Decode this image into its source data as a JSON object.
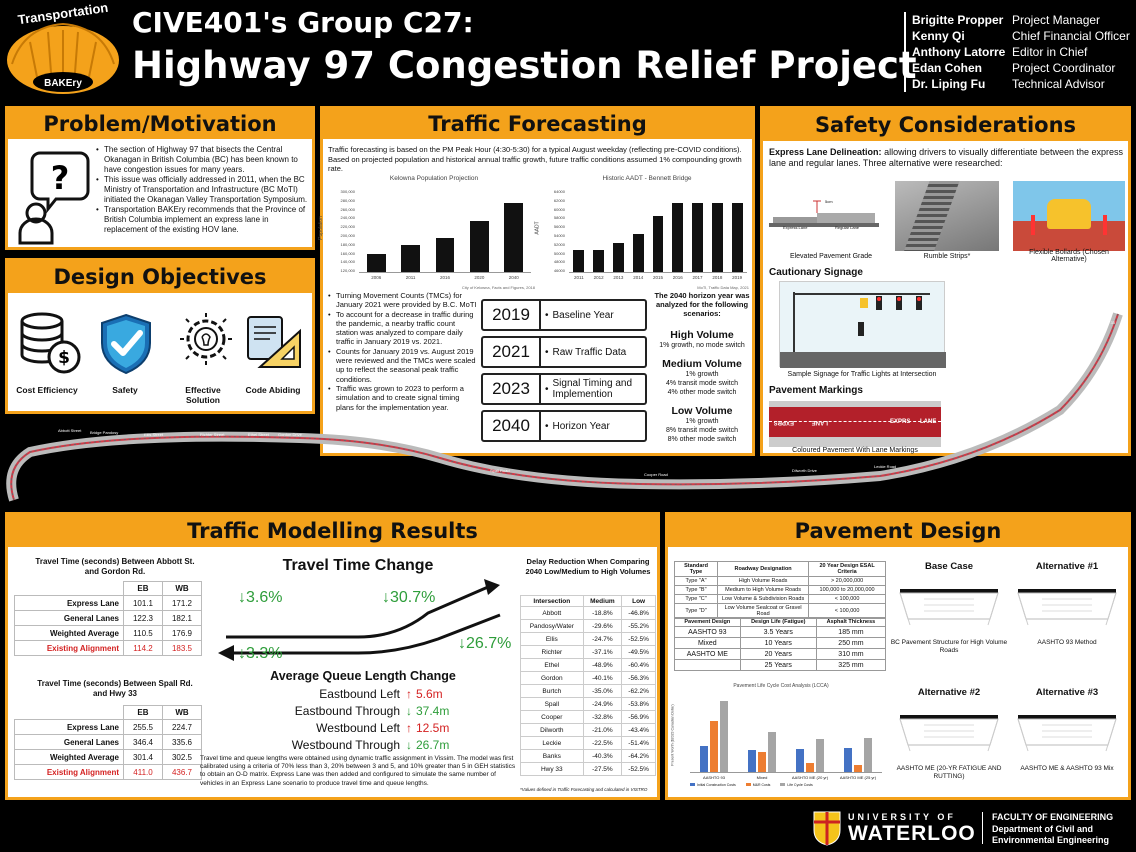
{
  "header": {
    "logo_top": "Transportation",
    "logo_bottom": "BAKEry",
    "title1": "CIVE401's Group C27:",
    "title2": "Highway 97 Congestion Relief Project",
    "team": [
      {
        "name": "Brigitte Propper",
        "role": "Project Manager"
      },
      {
        "name": "Kenny Qi",
        "role": "Chief Financial Officer"
      },
      {
        "name": "Anthony Latorre",
        "role": "Editor in Chief"
      },
      {
        "name": "Edan Cohen",
        "role": "Project Coordinator"
      },
      {
        "name": "Dr. Liping Fu",
        "role": "Technical Advisor"
      }
    ]
  },
  "problem": {
    "title": "Problem/Motivation",
    "bullets": [
      "The section of Highway 97 that bisects the Central Okanagan in British Columbia (BC) has been known to have congestion issues for many years.",
      "This issue was officially addressed in 2011, when the BC Ministry of Transportation and Infrastructure (BC MoTI) initiated the Okanagan Valley Transportation Symposium.",
      "Transportation BAKEry recommends that the Province of British Columbia implement an express lane in replacement of the existing HOV lane."
    ]
  },
  "objectives": {
    "title": "Design Objectives",
    "items": [
      "Cost Efficiency",
      "Safety",
      "Effective Solution",
      "Code Abiding"
    ]
  },
  "forecast": {
    "title": "Traffic Forecasting",
    "intro": "Traffic forecasting is based on the PM Peak Hour (4:30-5:30) for a typical August weekday (reflecting pre-COVID conditions). Based on projected population and historical annual traffic growth, future traffic conditions assumed 1% compounding growth rate.",
    "bullets": [
      "Turning Movement Counts (TMCs) for January 2021 were provided by B.C. MoTI",
      "To account for a decrease in traffic during the pandemic, a nearby traffic count station was analyzed to compare daily traffic in January 2019 vs. 2021.",
      "Counts for January 2019 vs. August 2019 were reviewed and the TMCs were scaled up to reflect the seasonal peak traffic conditions.",
      "Traffic was grown to 2023 to perform a simulation and to create signal timing plans for the implementation year."
    ],
    "years": [
      {
        "year": "2019",
        "label": "Baseline Year"
      },
      {
        "year": "2021",
        "label": "Raw Traffic Data"
      },
      {
        "year": "2023",
        "label": "Signal Timing and Implemention"
      },
      {
        "year": "2040",
        "label": "Horizon Year"
      }
    ],
    "scenario_intro": "The 2040 horizon year was analyzed for the following scenarios:",
    "scenarios": [
      {
        "name": "High Volume",
        "lines": [
          "1% growth, no mode switch"
        ]
      },
      {
        "name": "Medium Volume",
        "lines": [
          "1% growth",
          "4% transit mode switch",
          "4% other mode switch"
        ]
      },
      {
        "name": "Low Volume",
        "lines": [
          "1% growth",
          "8% transit mode switch",
          "8% other mode switch"
        ]
      }
    ]
  },
  "chart_data": [
    {
      "type": "bar",
      "title": "Kelowna Population Projection",
      "ylabel": "Population",
      "categories": [
        "2006",
        "2011",
        "2016",
        "2020",
        "2040"
      ],
      "values": [
        160000,
        180000,
        197000,
        235000,
        275000
      ],
      "ylim": [
        120000,
        300000
      ],
      "yticks": [
        "300,000",
        "280,000",
        "260,000",
        "240,000",
        "220,000",
        "200,000",
        "180,000",
        "160,000",
        "140,000",
        "120,000"
      ],
      "source": "City of Kelowna, Facts and Figures, 2018"
    },
    {
      "type": "bar",
      "title": "Historic AADT - Bennett Bridge",
      "ylabel": "AADT",
      "categories": [
        "2011",
        "2012",
        "2013",
        "2014",
        "2015",
        "2016",
        "2017",
        "2018",
        "2019"
      ],
      "values": [
        51000,
        51000,
        52500,
        54500,
        58500,
        61500,
        61500,
        61500,
        61500
      ],
      "ylim": [
        46000,
        64000
      ],
      "yticks": [
        "64000",
        "62000",
        "60000",
        "58000",
        "56000",
        "54000",
        "52000",
        "50000",
        "48000",
        "46000"
      ],
      "source": "MoTI, Traffic Data Map, 2021"
    }
  ],
  "safety": {
    "title": "Safety Considerations",
    "delineation_head": "Express Lane Delineation:",
    "delineation_text": "allowing drivers to visually differentiate between the express lane and regular lanes. Three alternative were researched:",
    "alt_captions": [
      "Elevated Pavement Grade",
      "Rumble Strips*",
      "Flexible Bollards (Chosen Alternative)"
    ],
    "diagram_labels": [
      "Express Lane",
      "Regular Lane",
      "5cm"
    ],
    "signage_head": "Cautionary Signage",
    "signage_caption": "Sample Signage for Traffic Lights at Intersection",
    "markings_head": "Pavement Markings",
    "markings_caption": "Coloured Pavement With Lane Markings",
    "marking_words": [
      "EXPRS",
      "LANE",
      "EXPRS",
      "LANE"
    ]
  },
  "map": {
    "labels": [
      "Abbott Street",
      "Bridge Pandosy",
      "Ellis Street",
      "Richter Street",
      "Ethel Street",
      "Gordon Drive",
      "Burtch Road",
      "Spall Road",
      "Cooper Road",
      "Dilworth Drive",
      "Leckie Road",
      "Banks Road",
      "Highway 33"
    ]
  },
  "modelling": {
    "title": "Traffic Modelling Results",
    "table1": {
      "title": "Travel Time (seconds) Between Abbott St. and Gordon Rd.",
      "cols": [
        "EB",
        "WB"
      ],
      "rows": [
        {
          "label": "Express Lane",
          "eb": "101.1",
          "wb": "171.2"
        },
        {
          "label": "General Lanes",
          "eb": "122.3",
          "wb": "182.1"
        },
        {
          "label": "Weighted Average",
          "eb": "110.5",
          "wb": "176.9"
        },
        {
          "label": "Existing Alignment",
          "eb": "114.2",
          "wb": "183.5"
        }
      ]
    },
    "table2": {
      "title": "Travel Time (seconds) Between Spall Rd. and Hwy 33",
      "cols": [
        "EB",
        "WB"
      ],
      "rows": [
        {
          "label": "Express Lane",
          "eb": "255.5",
          "wb": "224.7"
        },
        {
          "label": "General Lanes",
          "eb": "346.4",
          "wb": "335.6"
        },
        {
          "label": "Weighted Average",
          "eb": "301.4",
          "wb": "302.5"
        },
        {
          "label": "Existing Alignment",
          "eb": "411.0",
          "wb": "436.7"
        }
      ]
    },
    "ttc_title": "Travel Time Change",
    "ttc": [
      "3.6%",
      "30.7%",
      "26.7%",
      "3.3%"
    ],
    "queue_title": "Average Queue Length Change",
    "queue": [
      {
        "label": "Eastbound Left",
        "value": "5.6m",
        "dir": "up"
      },
      {
        "label": "Eastbound Through",
        "value": "37.4m",
        "dir": "down"
      },
      {
        "label": "Westbound Left",
        "value": "12.5m",
        "dir": "up"
      },
      {
        "label": "Westbound Through",
        "value": "26.7m",
        "dir": "down"
      }
    ],
    "note": "Travel time and queue lengths were obtained using dynamic traffic assignment in Vissim. The model was first calibrated using a criteria of 70% less than 3, 20% between 3 and 5, and 10% greater than 5 in GEH statistics to obtain an O-D matrix. Express Lane was then added and configured to simulate the same number of vehicles in an Express Lane scenario to produce travel time and queue lengths.",
    "delay": {
      "title": "Delay Reduction When Comparing 2040 Low/Medium to High Volumes",
      "cols": [
        "Intersection",
        "Medium",
        "Low"
      ],
      "rows": [
        [
          "Abbott",
          "-18.8%",
          "-46.8%"
        ],
        [
          "Pandosy/Water",
          "-29.6%",
          "-55.2%"
        ],
        [
          "Ellis",
          "-24.7%",
          "-52.5%"
        ],
        [
          "Richter",
          "-37.1%",
          "-49.5%"
        ],
        [
          "Ethel",
          "-48.9%",
          "-60.4%"
        ],
        [
          "Gordon",
          "-40.1%",
          "-56.3%"
        ],
        [
          "Burtch",
          "-35.0%",
          "-62.2%"
        ],
        [
          "Spall",
          "-24.9%",
          "-53.8%"
        ],
        [
          "Cooper",
          "-32.8%",
          "-56.9%"
        ],
        [
          "Dilworth",
          "-21.0%",
          "-43.4%"
        ],
        [
          "Leckie",
          "-22.5%",
          "-51.4%"
        ],
        [
          "Banks",
          "-40.3%",
          "-64.2%"
        ],
        [
          "Hwy 33",
          "-27.5%",
          "-52.5%"
        ]
      ],
      "footnote": "*Values defined in Traffic Forecasting and calculated in VISTRO"
    }
  },
  "pavement": {
    "title": "Pavement Design",
    "std": {
      "cols": [
        "Standard Type",
        "Roadway Designation",
        "20 Year Design ESAL Criteria"
      ],
      "rows": [
        [
          "Type \"A\"",
          "High Volume Roads",
          "> 20,000,000"
        ],
        [
          "Type \"B\"",
          "Medium to High Volume Roads",
          "100,000 to 20,000,000"
        ],
        [
          "Type \"C\"",
          "Low Volume & Subdivision Roads",
          "< 100,000"
        ],
        [
          "Type \"D\"",
          "Low Volume Sealcoat or Gravel Road",
          "< 100,000"
        ]
      ]
    },
    "design": {
      "cols": [
        "Pavement Design",
        "Design Life (Fatigue)",
        "Asphalt Thickness"
      ],
      "rows": [
        [
          "AASHTO 93",
          "3.5 Years",
          "185 mm"
        ],
        [
          "Mixed",
          "10 Years",
          "250 mm"
        ],
        [
          "AASHTO ME",
          "20 Years",
          "310 mm"
        ],
        [
          "",
          "25 Years",
          "325 mm"
        ]
      ]
    },
    "lcca_title": "Pavement Life Cycle Cost Analysis (LCCA)",
    "lcca_ylabel": "Present Worth ($2023 Canadian Dollar)",
    "lcca_categories": [
      "AASHTO 93",
      "Mixed",
      "AASHTO ME (20 yr)",
      "AASHTO ME (25 yr)"
    ],
    "lcca_series": [
      {
        "name": "Initial Construction Costs",
        "color": "#4472c4",
        "values": [
          0.45,
          0.38,
          0.4,
          0.42
        ]
      },
      {
        "name": "M&R Costs",
        "color": "#ed7d31",
        "values": [
          0.9,
          0.35,
          0.15,
          0.12
        ]
      },
      {
        "name": "Life Cycle Costs",
        "color": "#a5a5a5",
        "values": [
          1.25,
          0.7,
          0.58,
          0.6
        ]
      }
    ],
    "sections": [
      {
        "title": "Base Case",
        "caption": "BC Pavement Structure for High Volume Roads"
      },
      {
        "title": "Alternative #1",
        "caption": "AASHTO 93 Method"
      },
      {
        "title": "Alternative #2",
        "caption": "AASHTO ME (20-YR FATIGUE AND RUTTING)"
      },
      {
        "title": "Alternative #3",
        "caption": "AASHTO ME & AASHTO 93 Mix"
      }
    ]
  },
  "footer": {
    "uni_top": "UNIVERSITY OF",
    "uni_name": "WATERLOO",
    "faculty": "FACULTY OF ENGINEERING",
    "dept1": "Department of Civil and",
    "dept2": "Environmental Engineering"
  },
  "colors": {
    "accent": "#f4a21b",
    "red": "#d42222",
    "green": "#2e9d3a"
  }
}
